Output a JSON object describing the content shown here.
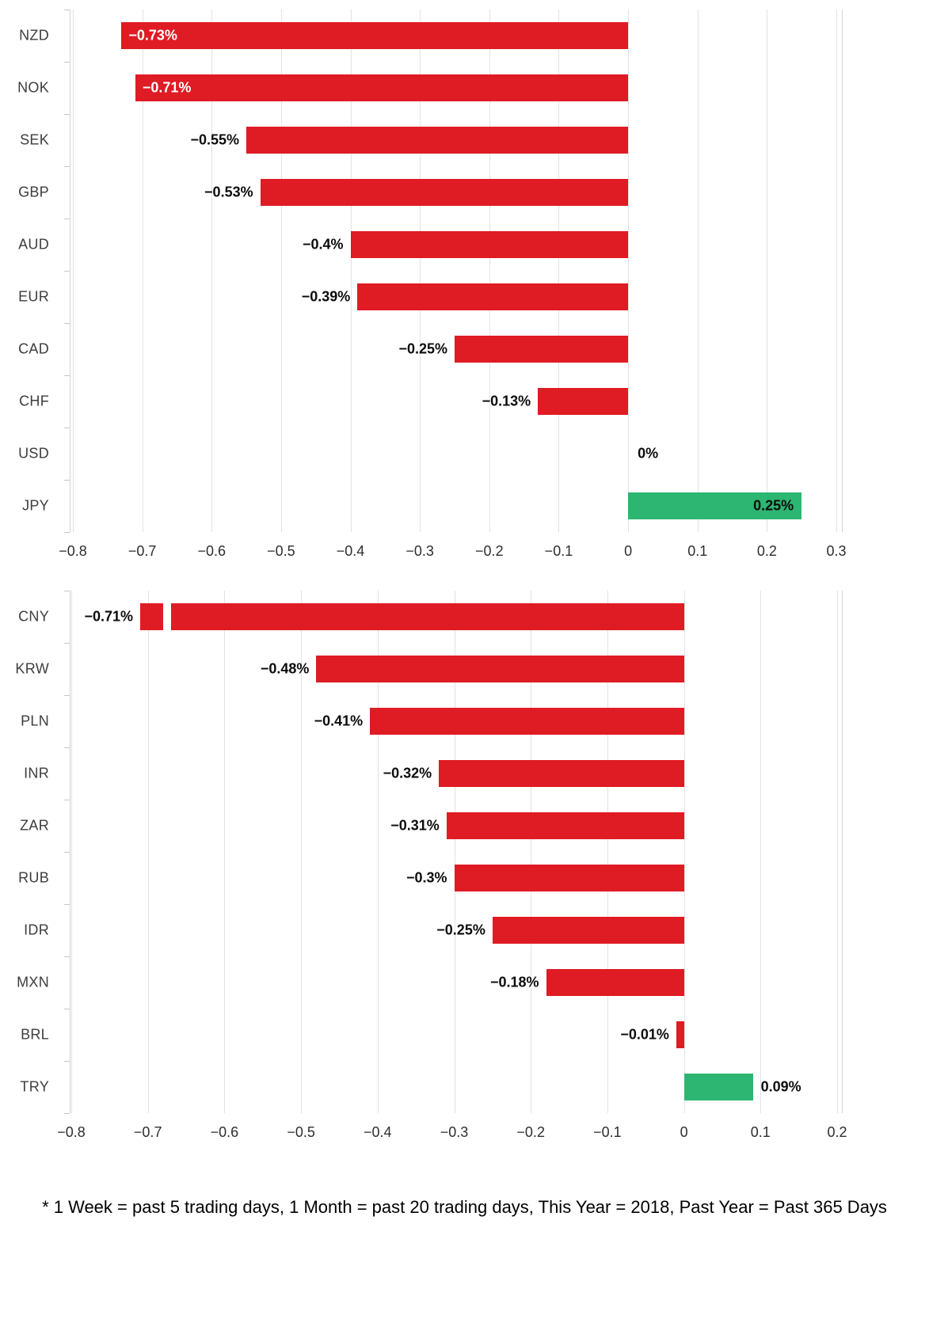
{
  "footnote": "* 1 Week = past 5 trading days, 1 Month = past 20 trading days, This Year = 2018, Past Year = Past 365 Days",
  "colors": {
    "negative": "#df1b24",
    "positive": "#2cb671"
  },
  "chart_data": [
    {
      "type": "bar",
      "orientation": "horizontal",
      "group": "major-currencies",
      "unit": "%",
      "xlim": [
        -0.8,
        0.3
      ],
      "xticks": [
        -0.8,
        -0.7,
        -0.6,
        -0.5,
        -0.4,
        -0.3,
        -0.2,
        -0.1,
        0,
        0.1,
        0.2,
        0.3
      ],
      "xtick_labels": [
        "−0.8",
        "−0.7",
        "−0.6",
        "−0.5",
        "−0.4",
        "−0.3",
        "−0.2",
        "−0.1",
        "0",
        "0.1",
        "0.2",
        "0.3"
      ],
      "bars": [
        {
          "category": "NZD",
          "value": -0.73,
          "label": "−0.73%",
          "label_placement": "inside-start",
          "label_color": "#ffffff"
        },
        {
          "category": "NOK",
          "value": -0.71,
          "label": "−0.71%",
          "label_placement": "inside-start",
          "label_color": "#ffffff"
        },
        {
          "category": "SEK",
          "value": -0.55,
          "label": "−0.55%",
          "label_placement": "outside-start"
        },
        {
          "category": "GBP",
          "value": -0.53,
          "label": "−0.53%",
          "label_placement": "outside-start"
        },
        {
          "category": "AUD",
          "value": -0.4,
          "label": "−0.4%",
          "label_placement": "outside-start"
        },
        {
          "category": "EUR",
          "value": -0.39,
          "label": "−0.39%",
          "label_placement": "outside-start"
        },
        {
          "category": "CAD",
          "value": -0.25,
          "label": "−0.25%",
          "label_placement": "outside-start"
        },
        {
          "category": "CHF",
          "value": -0.13,
          "label": "−0.13%",
          "label_placement": "outside-start"
        },
        {
          "category": "USD",
          "value": 0,
          "label": "0%",
          "label_placement": "zero"
        },
        {
          "category": "JPY",
          "value": 0.25,
          "label": "0.25%",
          "label_placement": "inside-end"
        }
      ]
    },
    {
      "type": "bar",
      "orientation": "horizontal",
      "group": "emerging-market-currencies",
      "unit": "%",
      "xlim": [
        -0.8,
        0.2
      ],
      "xticks": [
        -0.8,
        -0.7,
        -0.6,
        -0.5,
        -0.4,
        -0.3,
        -0.2,
        -0.1,
        0,
        0.1,
        0.2
      ],
      "xtick_labels": [
        "−0.8",
        "−0.7",
        "−0.6",
        "−0.5",
        "−0.4",
        "−0.3",
        "−0.2",
        "−0.1",
        "0",
        "0.1",
        "0.2"
      ],
      "bars": [
        {
          "category": "CNY",
          "value": -0.71,
          "label": "−0.71%",
          "label_placement": "outside-start",
          "gap": [
            -0.68,
            -0.67
          ]
        },
        {
          "category": "KRW",
          "value": -0.48,
          "label": "−0.48%",
          "label_placement": "outside-start"
        },
        {
          "category": "PLN",
          "value": -0.41,
          "label": "−0.41%",
          "label_placement": "outside-start"
        },
        {
          "category": "INR",
          "value": -0.32,
          "label": "−0.32%",
          "label_placement": "outside-start"
        },
        {
          "category": "ZAR",
          "value": -0.31,
          "label": "−0.31%",
          "label_placement": "outside-start"
        },
        {
          "category": "RUB",
          "value": -0.3,
          "label": "−0.3%",
          "label_placement": "outside-start"
        },
        {
          "category": "IDR",
          "value": -0.25,
          "label": "−0.25%",
          "label_placement": "outside-start"
        },
        {
          "category": "MXN",
          "value": -0.18,
          "label": "−0.18%",
          "label_placement": "outside-start"
        },
        {
          "category": "BRL",
          "value": -0.01,
          "label": "−0.01%",
          "label_placement": "outside-start"
        },
        {
          "category": "TRY",
          "value": 0.09,
          "label": "0.09%",
          "label_placement": "outside-end"
        }
      ]
    }
  ]
}
